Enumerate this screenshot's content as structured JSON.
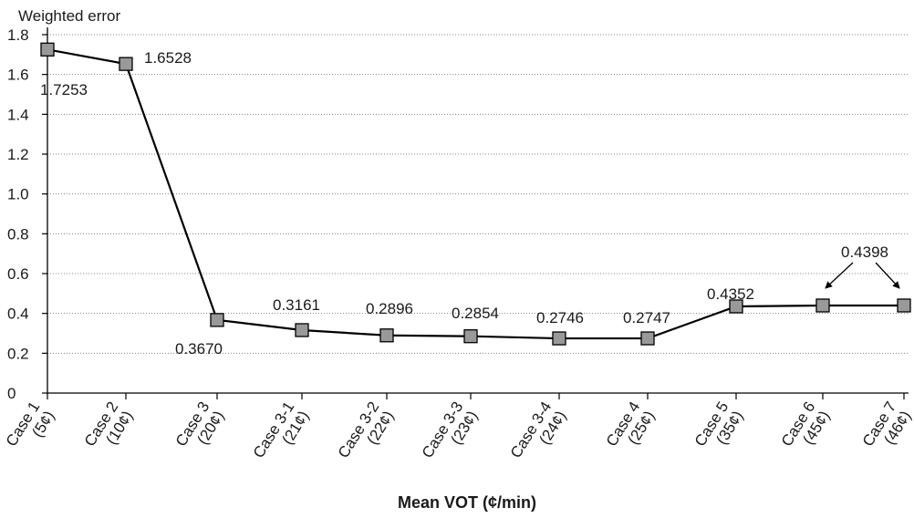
{
  "chart_data": {
    "type": "line",
    "title": "",
    "ylabel": "Weighted error",
    "xlabel": "Mean VOT (¢/min)",
    "ylim": [
      0,
      1.8
    ],
    "yticks": [
      "0",
      "0.2",
      "0.4",
      "0.6",
      "0.8",
      "1.0",
      "1.2",
      "1.4",
      "1.6",
      "1.8"
    ],
    "grid": "horizontal-dotted",
    "categories": [
      {
        "name": "Case 1",
        "vot": "(5¢)"
      },
      {
        "name": "Case 2",
        "vot": "(10¢)"
      },
      {
        "name": "Case 3",
        "vot": "(20¢)"
      },
      {
        "name": "Case 3-1",
        "vot": "(21¢)"
      },
      {
        "name": "Case 3-2",
        "vot": "(22¢)"
      },
      {
        "name": "Case 3-3",
        "vot": "(23¢)"
      },
      {
        "name": "Case 3-4",
        "vot": "(24¢)"
      },
      {
        "name": "Case 4",
        "vot": "(25¢)"
      },
      {
        "name": "Case 5",
        "vot": "(35¢)"
      },
      {
        "name": "Case 6",
        "vot": "(45¢)"
      },
      {
        "name": "Case 7",
        "vot": "(46¢)"
      }
    ],
    "series": [
      {
        "values": [
          1.7253,
          1.6528,
          0.367,
          0.3161,
          0.2896,
          0.2854,
          0.2746,
          0.2747,
          0.4352,
          0.4398,
          0.4398
        ]
      }
    ],
    "data_labels": [
      "1.7253",
      "1.6528",
      "0.3670",
      "0.3161",
      "0.2896",
      "0.2854",
      "0.2746",
      "0.2747",
      "0.4352",
      "0.4398"
    ],
    "shared_label_points": [
      9,
      10
    ],
    "colors": {
      "line": "#000000",
      "marker_fill": "#999999",
      "marker_stroke": "#000000",
      "grid": "#888888"
    }
  }
}
